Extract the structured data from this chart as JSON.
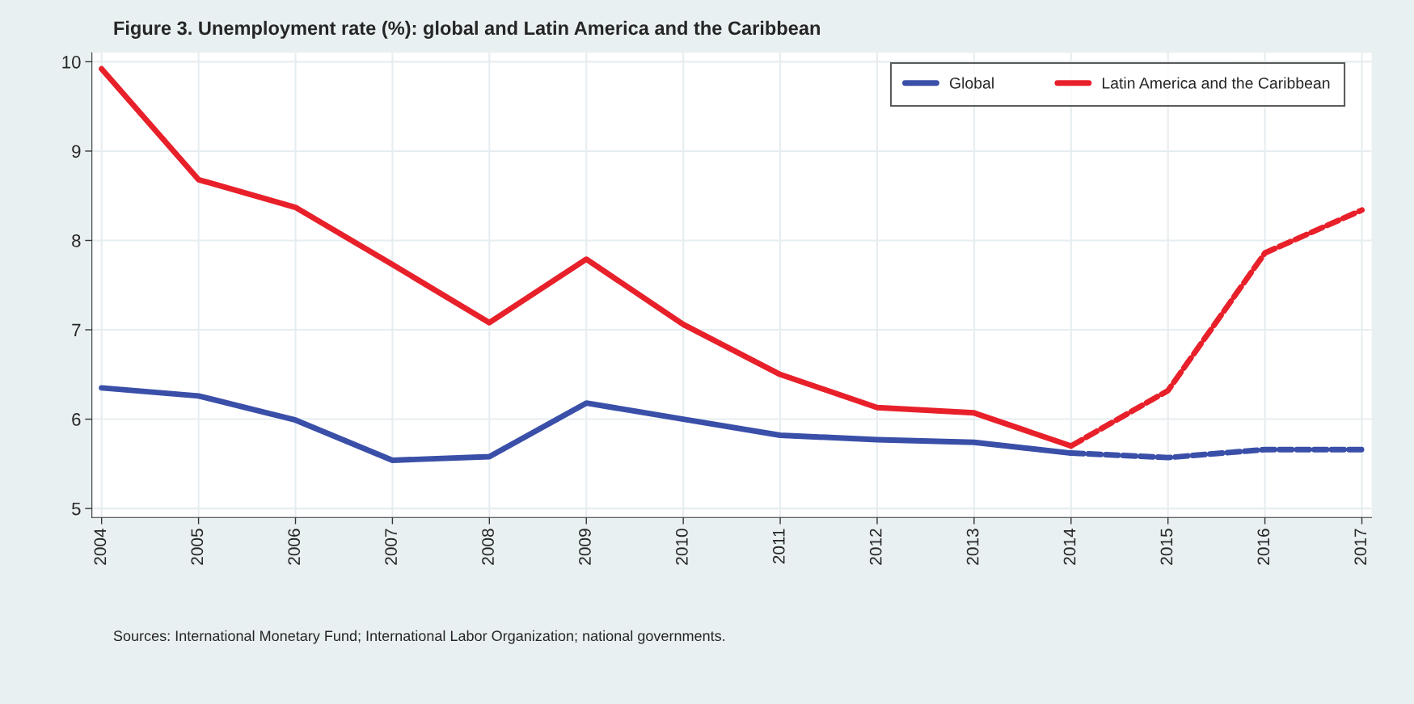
{
  "chart_data": {
    "type": "line",
    "title": "Figure 3. Unemployment rate (%): global and Latin America and the Caribbean",
    "series": [
      {
        "name": "Global",
        "color": "#3a4fa8",
        "line_style": "solid",
        "x": [
          2004,
          2005,
          2006,
          2007,
          2008,
          2009,
          2010,
          2011,
          2012,
          2013,
          2014
        ],
        "values": [
          6.35,
          6.26,
          5.99,
          5.54,
          5.58,
          6.18,
          6.0,
          5.82,
          5.77,
          5.74,
          5.62
        ]
      },
      {
        "name": "Latin America and the Caribbean",
        "color": "#e8202a",
        "line_style": "solid",
        "x": [
          2004,
          2005,
          2006,
          2007,
          2008,
          2009,
          2010,
          2011,
          2012,
          2013,
          2014
        ],
        "values": [
          9.92,
          8.68,
          8.37,
          7.73,
          7.08,
          7.79,
          7.06,
          6.5,
          6.13,
          6.07,
          5.7
        ]
      },
      {
        "color": "#3a4fa8",
        "line_style": "dashed",
        "x": [
          2014,
          2015,
          2016,
          2017
        ],
        "values": [
          5.62,
          5.57,
          5.66,
          5.66
        ]
      },
      {
        "color": "#e8202a",
        "line_style": "dashed",
        "x": [
          2014,
          2015,
          2016,
          2017
        ],
        "values": [
          5.7,
          6.32,
          7.86,
          8.34
        ]
      }
    ],
    "xlim": [
      2003.9,
      2017.1
    ],
    "xticks": [
      2004,
      2005,
      2006,
      2007,
      2008,
      2009,
      2010,
      2011,
      2012,
      2013,
      2014,
      2015,
      2016,
      2017
    ],
    "ylim": [
      4.9,
      10.1
    ],
    "yticks": [
      5,
      6,
      7,
      8,
      9,
      10
    ],
    "grid": true,
    "legend": "top right",
    "annotations": [
      "Sources: International Monetary Fund; International Labor Organization; national governments."
    ]
  }
}
